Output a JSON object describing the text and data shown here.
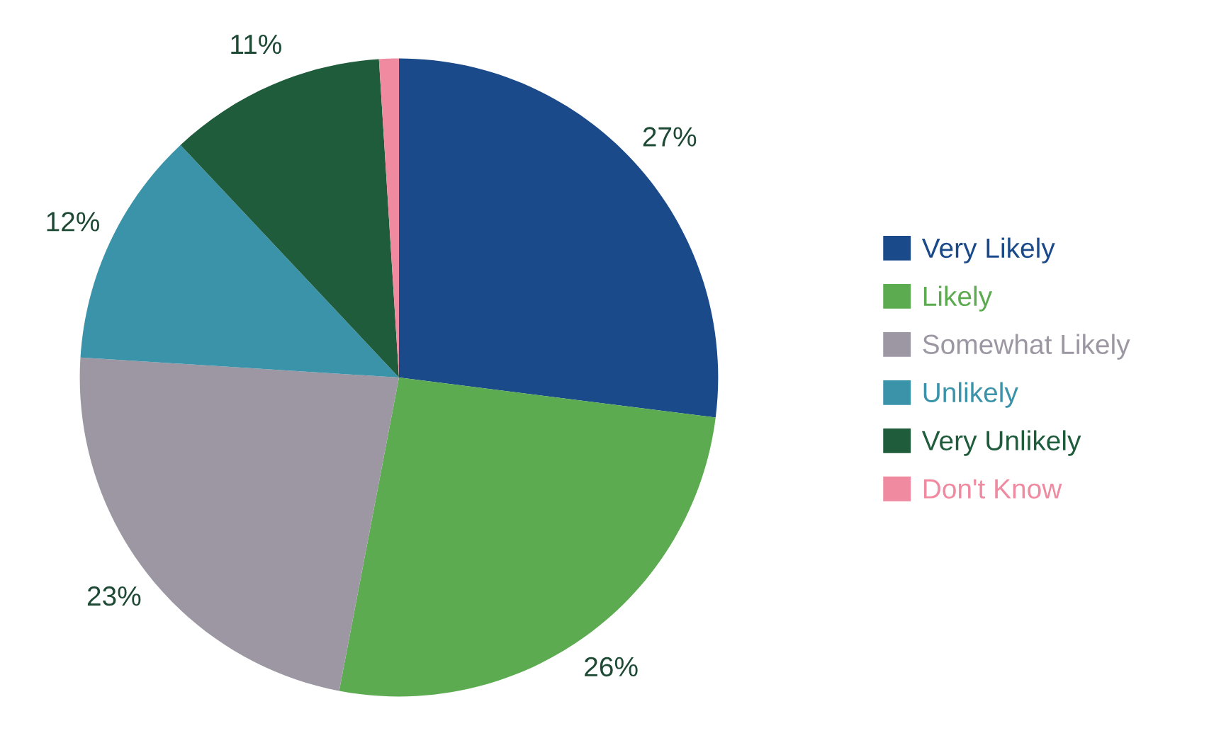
{
  "chart_data": {
    "type": "pie",
    "categories": [
      "Very Likely",
      "Likely",
      "Somewhat Likely",
      "Unlikely",
      "Very Unlikely",
      "Don't Know"
    ],
    "values": [
      27,
      26,
      23,
      12,
      11,
      1
    ],
    "colors": [
      "#1b4a8a",
      "#5cab50",
      "#9c97a3",
      "#3b93aa",
      "#1f5c3b",
      "#ef8aa0"
    ],
    "value_labels": [
      "27%",
      "26%",
      "23%",
      "12%",
      "11%",
      null
    ],
    "legend": "right"
  }
}
